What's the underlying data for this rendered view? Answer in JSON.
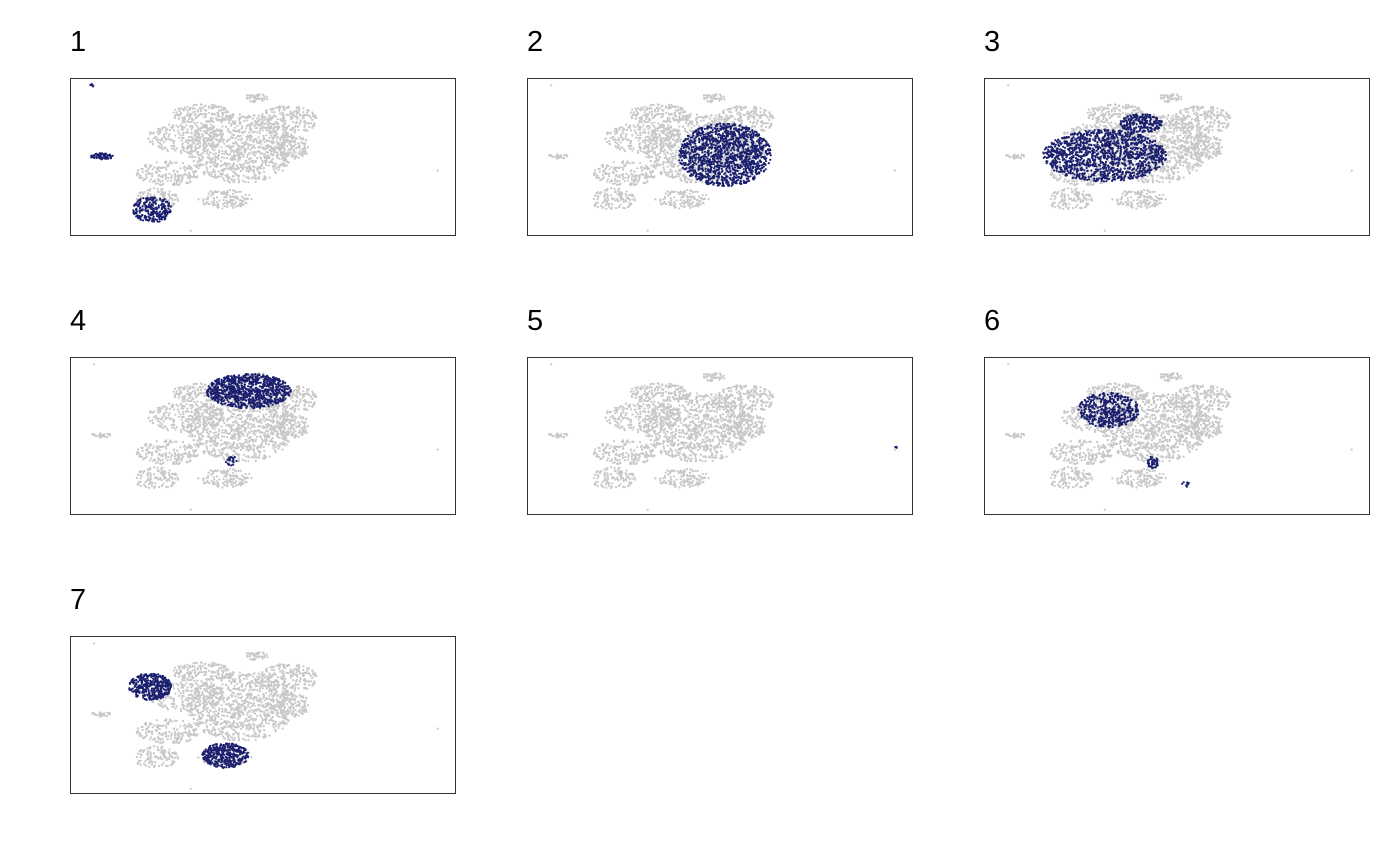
{
  "chart_data": {
    "type": "scatter",
    "title": "",
    "xlabel": "",
    "ylabel": "",
    "grid": false,
    "legend": "none",
    "background_color": "#c8c8c8",
    "highlight_color": "#1a1f6e",
    "x_range": [
      0,
      100
    ],
    "y_range": [
      0,
      100
    ],
    "panels": [
      {
        "label": "1",
        "highlight_regions": [
          {
            "x": [
              5,
              11
            ],
            "y": [
              49,
              53
            ],
            "n": 60
          },
          {
            "x": [
              16,
              26
            ],
            "y": [
              9,
              26
            ],
            "n": 240
          },
          {
            "x": [
              5,
              6
            ],
            "y": [
              95,
              97
            ],
            "n": 6
          }
        ]
      },
      {
        "label": "2",
        "highlight_regions": [
          {
            "x": [
              39,
              63
            ],
            "y": [
              32,
              72
            ],
            "n": 1300
          }
        ]
      },
      {
        "label": "3",
        "highlight_regions": [
          {
            "x": [
              15,
              47
            ],
            "y": [
              35,
              68
            ],
            "n": 1300
          },
          {
            "x": [
              35,
              46
            ],
            "y": [
              66,
              78
            ],
            "n": 220
          }
        ]
      },
      {
        "label": "4",
        "highlight_regions": [
          {
            "x": [
              35,
              57
            ],
            "y": [
              68,
              90
            ],
            "n": 900
          },
          {
            "x": [
              40,
              43
            ],
            "y": [
              32,
              38
            ],
            "n": 20
          }
        ]
      },
      {
        "label": "5",
        "highlight_regions": [
          {
            "x": [
              95,
              96
            ],
            "y": [
              42,
              44
            ],
            "n": 3
          }
        ]
      },
      {
        "label": "6",
        "highlight_regions": [
          {
            "x": [
              24,
              40
            ],
            "y": [
              56,
              78
            ],
            "n": 450
          },
          {
            "x": [
              42,
              45
            ],
            "y": [
              30,
              38
            ],
            "n": 40
          },
          {
            "x": [
              51,
              53
            ],
            "y": [
              18,
              22
            ],
            "n": 8
          }
        ]
      },
      {
        "label": "7",
        "highlight_regions": [
          {
            "x": [
              15,
              26
            ],
            "y": [
              60,
              77
            ],
            "n": 380
          },
          {
            "x": [
              34,
              46
            ],
            "y": [
              17,
              33
            ],
            "n": 380
          }
        ]
      }
    ]
  }
}
